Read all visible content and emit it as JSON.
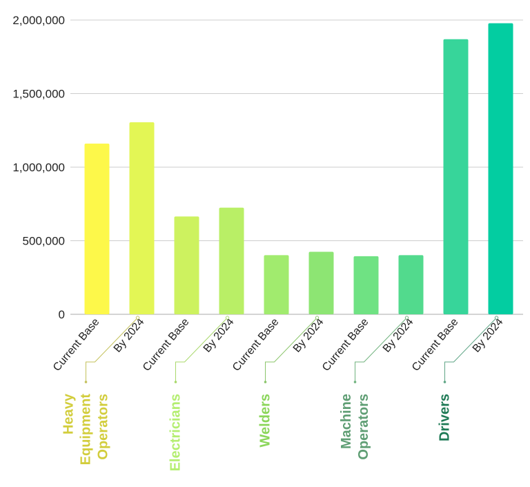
{
  "chart_data": {
    "type": "bar",
    "categories": [
      "Current Base",
      "By 2024",
      "Current Base",
      "By 2024",
      "Current Base",
      "By 2024",
      "Current Base",
      "By 2024",
      "Current Base",
      "By 2024"
    ],
    "values": [
      1160000,
      1305000,
      665000,
      725000,
      402000,
      425000,
      395000,
      402000,
      1870000,
      1978000
    ],
    "groups": [
      {
        "lines": [
          "Heavy",
          "Equipment",
          "Operators"
        ]
      },
      {
        "lines": [
          "Electricians"
        ]
      },
      {
        "lines": [
          "Welders"
        ]
      },
      {
        "lines": [
          "Machine",
          "Operators"
        ]
      },
      {
        "lines": [
          "Drivers"
        ]
      }
    ],
    "y_ticks": [
      "0",
      "500,000",
      "1,000,000",
      "1,500,000",
      "2,000,000"
    ],
    "ylim": [
      0,
      2000000
    ],
    "grid": true,
    "title": "",
    "xlabel": "",
    "ylabel": ""
  },
  "colors": {
    "bars": [
      "#fdf84a",
      "#e3f655",
      "#cdf25f",
      "#b9ef66",
      "#a1eb6e",
      "#8de573",
      "#6fe283",
      "#52da8d",
      "#37d59a",
      "#03cda1"
    ],
    "groups": [
      "#d2cd3c",
      "#b4ee70",
      "#8bd65a",
      "#5f9e74",
      "#1e7a55"
    ],
    "leaders": [
      "#c3c05a",
      "#a8d86a",
      "#8ac56a",
      "#6fb27d",
      "#5ea585"
    ],
    "grid": "#cccccc",
    "axis": "#aaaaaa"
  }
}
